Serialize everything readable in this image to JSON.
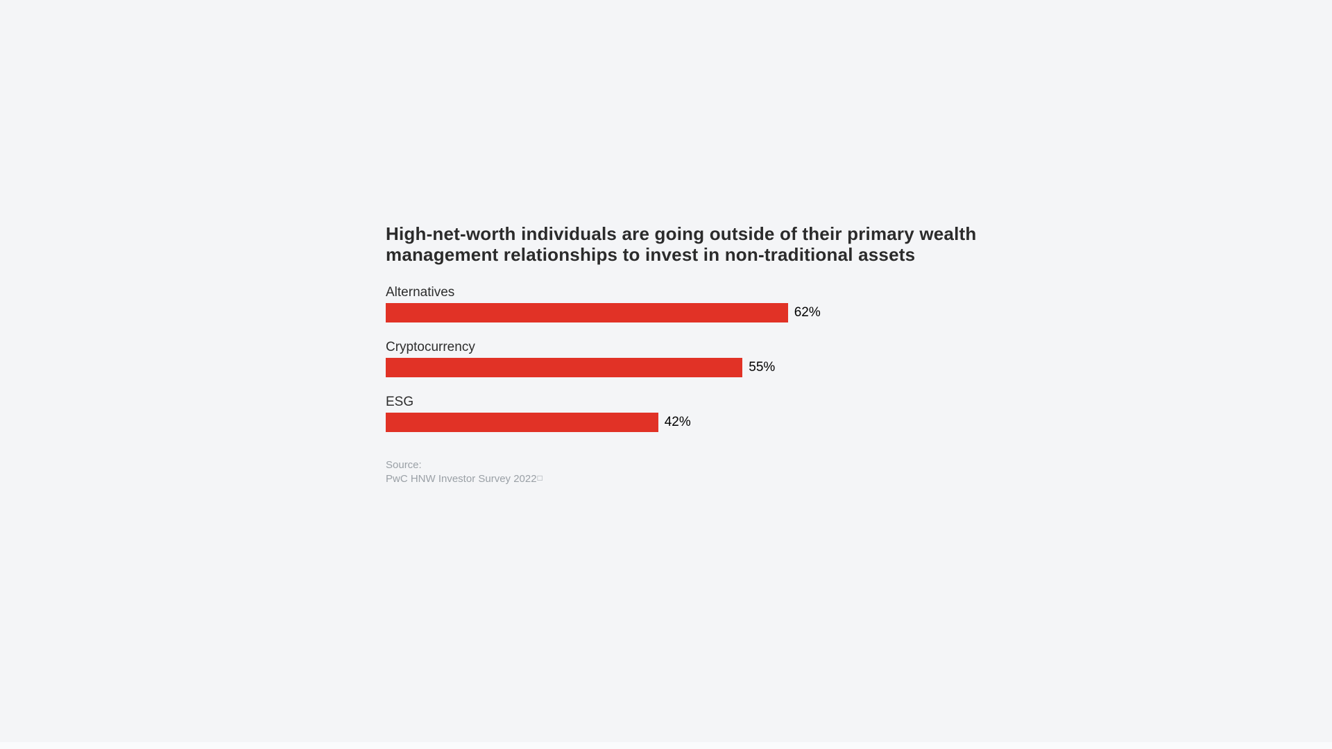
{
  "page": {
    "background_color": "#f4f5f7",
    "bottom_strip_color": "#fafbfc"
  },
  "chart_data": {
    "type": "bar",
    "orientation": "horizontal",
    "title": "High-net-worth individuals are going outside of their primary wealth management relationships to invest in non-traditional assets",
    "title_lines": {
      "line1": "High-net-worth individuals are going outside of their primary wealth",
      "line2": "management relationships to invest in non-traditional assets"
    },
    "categories": [
      "Alternatives",
      "Cryptocurrency",
      "ESG"
    ],
    "values": [
      62,
      55,
      42
    ],
    "items": [
      {
        "label": "Alternatives",
        "value": 62,
        "display_value": "62%"
      },
      {
        "label": "Cryptocurrency",
        "value": 55,
        "display_value": "55%"
      },
      {
        "label": "ESG",
        "value": 42,
        "display_value": "42%"
      }
    ],
    "xlabel": "",
    "ylabel": "",
    "xlim": [
      0,
      100
    ],
    "grid": false,
    "legend": "none",
    "data_labels": "outside-end",
    "bar_color": "#e13226",
    "title_color": "#2b2b2b",
    "label_color": "#2d2d2d",
    "value_color": "#000000"
  },
  "source": {
    "label": "Source:",
    "text": "PwC HNW Investor Survey 2022",
    "marker": "□",
    "color": "#9aa0a6"
  }
}
